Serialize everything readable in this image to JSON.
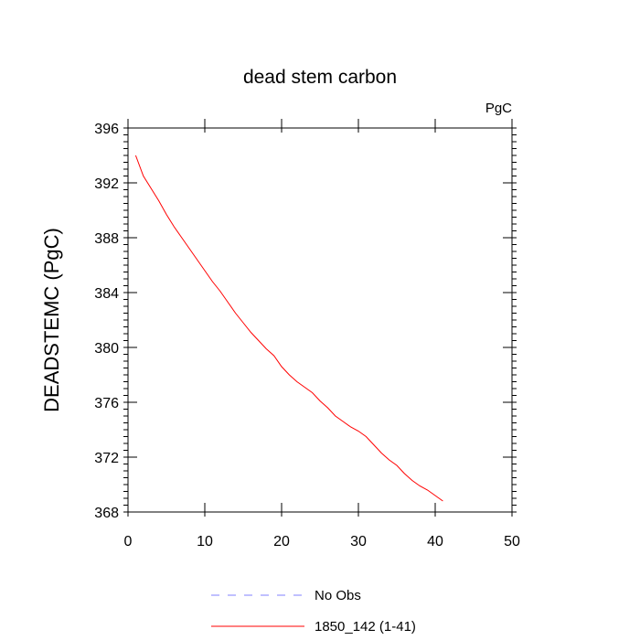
{
  "chart_data": {
    "type": "line",
    "title": "dead stem carbon",
    "units_label": "PgC",
    "xlabel": "",
    "ylabel": "DEADSTEMC  (PgC)",
    "xlim": [
      0,
      50
    ],
    "ylim": [
      368,
      396
    ],
    "x_ticks": [
      0,
      10,
      20,
      30,
      40,
      50
    ],
    "y_ticks": [
      368,
      372,
      376,
      380,
      384,
      388,
      392,
      396
    ],
    "grid": false,
    "legend_position": "bottom",
    "legend": [
      {
        "label": "No Obs",
        "color": "#8080ff",
        "style": "dashed"
      },
      {
        "label": "1850_142 (1-41)",
        "color": "#ff0000",
        "style": "solid"
      }
    ],
    "series": [
      {
        "name": "1850_142 (1-41)",
        "color": "#ff0000",
        "x": [
          1,
          2,
          3,
          4,
          5,
          6,
          7,
          8,
          9,
          10,
          11,
          12,
          13,
          14,
          15,
          16,
          17,
          18,
          19,
          20,
          21,
          22,
          23,
          24,
          25,
          26,
          27,
          28,
          29,
          30,
          31,
          32,
          33,
          34,
          35,
          36,
          37,
          38,
          39,
          40,
          41
        ],
        "y": [
          394.0,
          392.5,
          391.6,
          390.7,
          389.7,
          388.8,
          388.0,
          387.2,
          386.4,
          385.6,
          384.8,
          384.1,
          383.3,
          382.5,
          381.8,
          381.1,
          380.5,
          379.9,
          379.4,
          378.6,
          378.0,
          377.5,
          377.1,
          376.7,
          376.1,
          375.6,
          375.0,
          374.6,
          374.2,
          373.9,
          373.5,
          372.9,
          372.3,
          371.8,
          371.4,
          370.8,
          370.3,
          369.9,
          369.6,
          369.2,
          368.8
        ]
      }
    ]
  }
}
